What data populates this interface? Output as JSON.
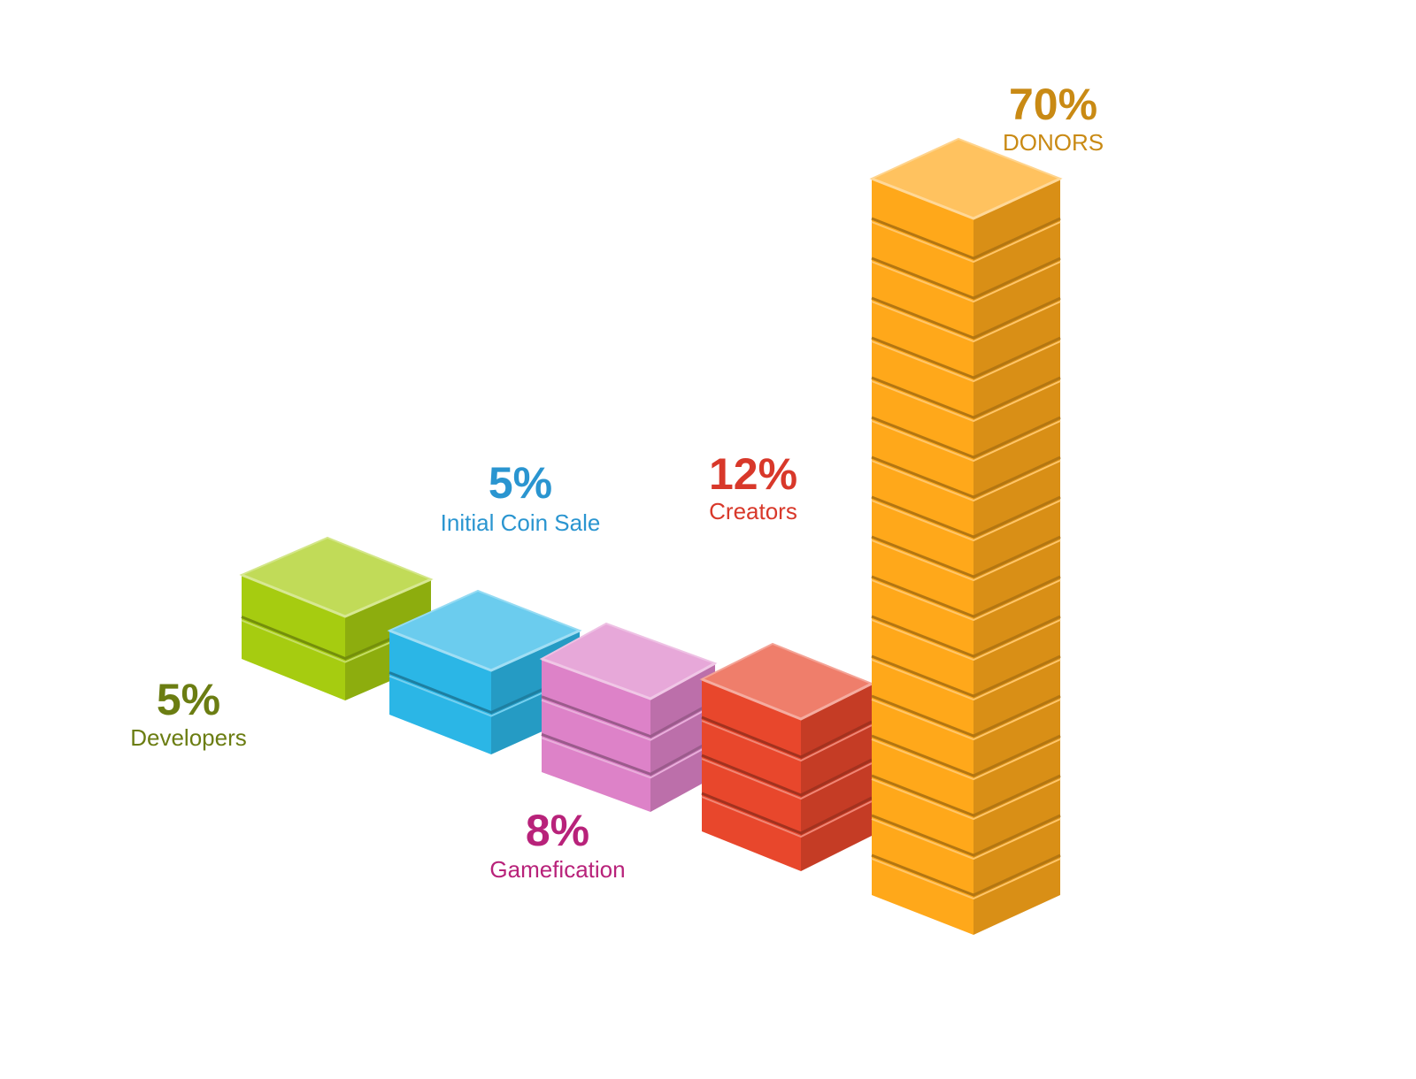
{
  "chart_data": {
    "type": "isometric-bar",
    "categories": [
      "Developers",
      "Initial Coin Sale",
      "Gamefication",
      "Creators",
      "DONORS"
    ],
    "values": [
      5,
      5,
      8,
      12,
      70
    ],
    "value_labels": [
      "5%",
      "5%",
      "8%",
      "12%",
      "70%"
    ],
    "colors": [
      "#a6cc10",
      "#2bb6e6",
      "#dd82c8",
      "#e8472c",
      "#ffa81a"
    ],
    "label_colors": [
      "#6b7d12",
      "#2a95d0",
      "#b8227a",
      "#d8382a",
      "#c98a14"
    ]
  }
}
